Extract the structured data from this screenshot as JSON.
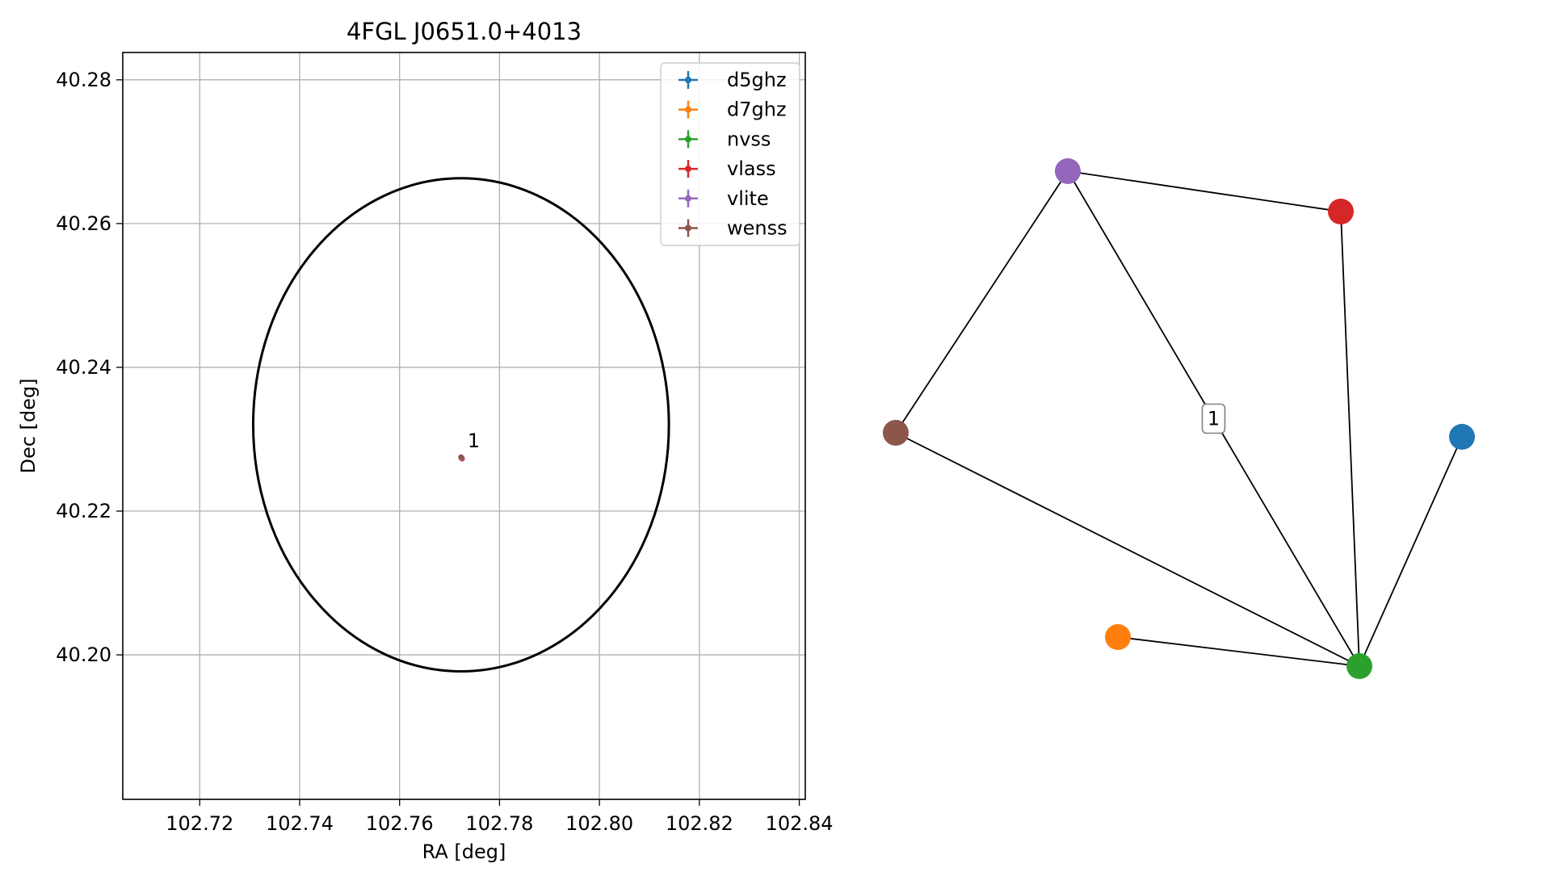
{
  "chart_data": [
    {
      "type": "scatter",
      "title": "4FGL J0651.0+4013",
      "xlabel": "RA [deg]",
      "ylabel": "Dec [deg]",
      "xlim": [
        102.7046,
        102.8412
      ],
      "ylim": [
        40.1799,
        40.2838
      ],
      "x_ticks": [
        102.72,
        102.74,
        102.76,
        102.78,
        102.8,
        102.82,
        102.84
      ],
      "y_ticks": [
        40.2,
        40.22,
        40.24,
        40.26,
        40.28
      ],
      "x_tick_labels": [
        "102.72",
        "102.74",
        "102.76",
        "102.78",
        "102.80",
        "102.82",
        "102.84"
      ],
      "y_tick_labels": [
        "40.20",
        "40.22",
        "40.24",
        "40.26",
        "40.28"
      ],
      "grid": true,
      "legend_position": "top-right",
      "series": [
        {
          "name": "d5ghz",
          "color": "#1f77b4",
          "x": [
            102.7724
          ],
          "y": [
            40.2274
          ]
        },
        {
          "name": "d7ghz",
          "color": "#ff7f0e",
          "x": [
            102.7725
          ],
          "y": [
            40.2273
          ]
        },
        {
          "name": "nvss",
          "color": "#2ca02c",
          "x": [
            102.7724
          ],
          "y": [
            40.2274
          ]
        },
        {
          "name": "vlass",
          "color": "#d62728",
          "x": [
            102.7725
          ],
          "y": [
            40.2273
          ]
        },
        {
          "name": "vlite",
          "color": "#9467bd",
          "x": [
            102.7724
          ],
          "y": [
            40.2274
          ]
        },
        {
          "name": "wenss",
          "color": "#8c564b",
          "x": [
            102.7723
          ],
          "y": [
            40.2275
          ]
        }
      ],
      "ellipse": {
        "center": [
          102.7723,
          40.232
        ],
        "semi_major_ra": 0.0416,
        "semi_minor_dec": 0.0343,
        "color": "#000000"
      },
      "annotations": [
        {
          "text": "1",
          "x": 102.7736,
          "y": 40.2289
        }
      ]
    },
    {
      "type": "network",
      "nodes": [
        {
          "id": "d5ghz",
          "color": "#1f77b4"
        },
        {
          "id": "d7ghz",
          "color": "#ff7f0e"
        },
        {
          "id": "nvss",
          "color": "#2ca02c"
        },
        {
          "id": "vlass",
          "color": "#d62728"
        },
        {
          "id": "vlite",
          "color": "#9467bd"
        },
        {
          "id": "wenss",
          "color": "#8c564b"
        }
      ],
      "edges": [
        [
          "vlite",
          "vlass"
        ],
        [
          "vlite",
          "wenss"
        ],
        [
          "vlite",
          "nvss"
        ],
        [
          "vlass",
          "nvss"
        ],
        [
          "wenss",
          "nvss"
        ],
        [
          "d7ghz",
          "nvss"
        ],
        [
          "d5ghz",
          "nvss"
        ]
      ],
      "edge_labels": [
        {
          "edge": [
            "vlite",
            "nvss"
          ],
          "text": "1"
        }
      ]
    }
  ]
}
